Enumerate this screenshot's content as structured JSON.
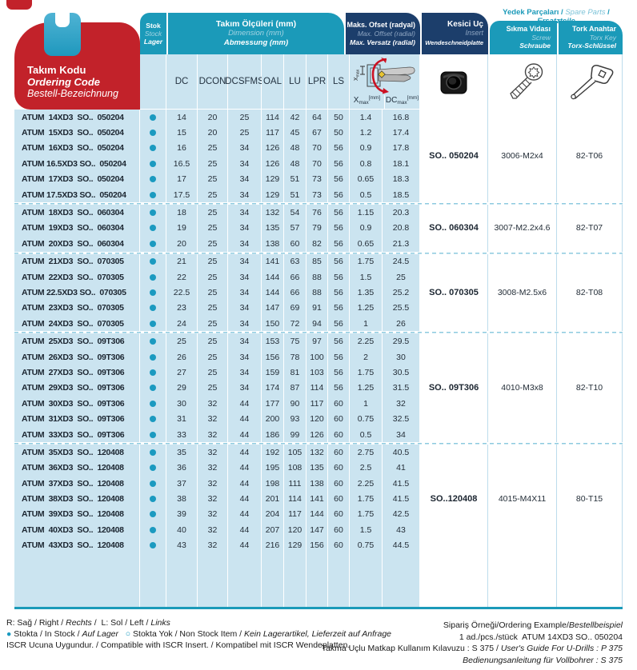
{
  "header": {
    "code": {
      "l1": "Takım Kodu",
      "l2": "Ordering Code",
      "l3": "Bestell-Bezeichnung"
    },
    "stock": {
      "l1": "Stok",
      "l2": "Stock",
      "l3": "Lager"
    },
    "dimensions": {
      "l1": "Takım Ölçüleri (mm)",
      "l2": "Dimension (mm)",
      "l3": "Abmessung (mm)"
    },
    "offset": {
      "l1": "Maks. Ofset (radyal)",
      "l2": "Max. Offset (radial)",
      "l3": "Max. Versatz (radial)"
    },
    "insert": {
      "l1": "Kesici Uç",
      "l2": "Insert",
      "l3": "Wendeschneidplatte"
    },
    "screw": {
      "l1": "Sıkma Vidası",
      "l2": "Screw",
      "l3": "Schraube"
    },
    "torx": {
      "l1": "Tork Anahtar",
      "l2": "Torx Key",
      "l3": "Torx-Schlüssel"
    },
    "spare_parts_title": [
      {
        "t": "Yedek Parçaları / ",
        "b": true
      },
      {
        "t": "Spare Parts",
        "i": true,
        "muted": true
      },
      {
        "t": " / ",
        "b": true
      },
      {
        "t": "Ersatzteile",
        "b": true,
        "i": true
      }
    ],
    "dim_columns": [
      "DC",
      "DCON",
      "DCSFMS",
      "OAL",
      "LU",
      "LPR",
      "LS"
    ],
    "offset_cols": [
      {
        "base": "X",
        "sub": "max",
        "unit": "[mm]"
      },
      {
        "base": "DC",
        "sub": "max",
        "unit": "[mm]"
      }
    ]
  },
  "groups": [
    {
      "insert": "SO.. 050204",
      "screw": "3006-M2x4",
      "torx": "82-T06",
      "rows": [
        {
          "code": "ATUM  14XD3  SO..  050204",
          "stock": "in",
          "vals": [
            "14",
            "20",
            "25",
            "114",
            "42",
            "64",
            "50",
            "1.4",
            "16.8"
          ]
        },
        {
          "code": "ATUM  15XD3  SO..  050204",
          "stock": "in",
          "vals": [
            "15",
            "20",
            "25",
            "117",
            "45",
            "67",
            "50",
            "1.2",
            "17.4"
          ]
        },
        {
          "code": "ATUM  16XD3  SO..  050204",
          "stock": "in",
          "vals": [
            "16",
            "25",
            "34",
            "126",
            "48",
            "70",
            "56",
            "0.9",
            "17.8"
          ]
        },
        {
          "code": "ATUM 16.5XD3 SO..  050204",
          "stock": "in",
          "vals": [
            "16.5",
            "25",
            "34",
            "126",
            "48",
            "70",
            "56",
            "0.8",
            "18.1"
          ]
        },
        {
          "code": "ATUM  17XD3  SO..  050204",
          "stock": "in",
          "vals": [
            "17",
            "25",
            "34",
            "129",
            "51",
            "73",
            "56",
            "0.65",
            "18.3"
          ]
        },
        {
          "code": "ATUM 17.5XD3 SO..  050204",
          "stock": "in",
          "vals": [
            "17.5",
            "25",
            "34",
            "129",
            "51",
            "73",
            "56",
            "0.5",
            "18.5"
          ]
        }
      ]
    },
    {
      "insert": "SO.. 060304",
      "screw": "3007-M2.2x4.6",
      "torx": "82-T07",
      "rows": [
        {
          "code": "ATUM  18XD3  SO..  060304",
          "stock": "in",
          "vals": [
            "18",
            "25",
            "34",
            "132",
            "54",
            "76",
            "56",
            "1.15",
            "20.3"
          ]
        },
        {
          "code": "ATUM  19XD3  SO..  060304",
          "stock": "in",
          "vals": [
            "19",
            "25",
            "34",
            "135",
            "57",
            "79",
            "56",
            "0.9",
            "20.8"
          ]
        },
        {
          "code": "ATUM  20XD3  SO..  060304",
          "stock": "in",
          "vals": [
            "20",
            "25",
            "34",
            "138",
            "60",
            "82",
            "56",
            "0.65",
            "21.3"
          ]
        }
      ]
    },
    {
      "insert": "SO.. 070305",
      "screw": "3008-M2.5x6",
      "torx": "82-T08",
      "rows": [
        {
          "code": "ATUM  21XD3  SO..  070305",
          "stock": "in",
          "vals": [
            "21",
            "25",
            "34",
            "141",
            "63",
            "85",
            "56",
            "1.75",
            "24.5"
          ]
        },
        {
          "code": "ATUM  22XD3  SO..  070305",
          "stock": "in",
          "vals": [
            "22",
            "25",
            "34",
            "144",
            "66",
            "88",
            "56",
            "1.5",
            "25"
          ]
        },
        {
          "code": "ATUM 22.5XD3 SO..  070305",
          "stock": "in",
          "vals": [
            "22.5",
            "25",
            "34",
            "144",
            "66",
            "88",
            "56",
            "1.35",
            "25.2"
          ]
        },
        {
          "code": "ATUM  23XD3  SO..  070305",
          "stock": "in",
          "vals": [
            "23",
            "25",
            "34",
            "147",
            "69",
            "91",
            "56",
            "1.25",
            "25.5"
          ]
        },
        {
          "code": "ATUM  24XD3  SO..  070305",
          "stock": "in",
          "vals": [
            "24",
            "25",
            "34",
            "150",
            "72",
            "94",
            "56",
            "1",
            "26"
          ]
        }
      ]
    },
    {
      "insert": "SO.. 09T306",
      "screw": "4010-M3x8",
      "torx": "82-T10",
      "rows": [
        {
          "code": "ATUM  25XD3  SO..  09T306",
          "stock": "in",
          "vals": [
            "25",
            "25",
            "34",
            "153",
            "75",
            "97",
            "56",
            "2.25",
            "29.5"
          ]
        },
        {
          "code": "ATUM  26XD3  SO..  09T306",
          "stock": "in",
          "vals": [
            "26",
            "25",
            "34",
            "156",
            "78",
            "100",
            "56",
            "2",
            "30"
          ]
        },
        {
          "code": "ATUM  27XD3  SO..  09T306",
          "stock": "in",
          "vals": [
            "27",
            "25",
            "34",
            "159",
            "81",
            "103",
            "56",
            "1.75",
            "30.5"
          ]
        },
        {
          "code": "ATUM  29XD3  SO..  09T306",
          "stock": "in",
          "vals": [
            "29",
            "25",
            "34",
            "174",
            "87",
            "114",
            "56",
            "1.25",
            "31.5"
          ]
        },
        {
          "code": "ATUM  30XD3  SO..  09T306",
          "stock": "in",
          "vals": [
            "30",
            "32",
            "44",
            "177",
            "90",
            "117",
            "60",
            "1",
            "32"
          ]
        },
        {
          "code": "ATUM  31XD3  SO..  09T306",
          "stock": "in",
          "vals": [
            "31",
            "32",
            "44",
            "200",
            "93",
            "120",
            "60",
            "0.75",
            "32.5"
          ]
        },
        {
          "code": "ATUM  33XD3  SO..  09T306",
          "stock": "in",
          "vals": [
            "33",
            "32",
            "44",
            "186",
            "99",
            "126",
            "60",
            "0.5",
            "34"
          ]
        }
      ]
    },
    {
      "insert": "SO..120408",
      "screw": "4015-M4X11",
      "torx": "80-T15",
      "rows": [
        {
          "code": "ATUM  35XD3  SO..  120408",
          "stock": "in",
          "vals": [
            "35",
            "32",
            "44",
            "192",
            "105",
            "132",
            "60",
            "2.75",
            "40.5"
          ]
        },
        {
          "code": "ATUM  36XD3  SO..  120408",
          "stock": "in",
          "vals": [
            "36",
            "32",
            "44",
            "195",
            "108",
            "135",
            "60",
            "2.5",
            "41"
          ]
        },
        {
          "code": "ATUM  37XD3  SO..  120408",
          "stock": "in",
          "vals": [
            "37",
            "32",
            "44",
            "198",
            "111",
            "138",
            "60",
            "2.25",
            "41.5"
          ]
        },
        {
          "code": "ATUM  38XD3  SO..  120408",
          "stock": "in",
          "vals": [
            "38",
            "32",
            "44",
            "201",
            "114",
            "141",
            "60",
            "1.75",
            "41.5"
          ]
        },
        {
          "code": "ATUM  39XD3  SO..  120408",
          "stock": "in",
          "vals": [
            "39",
            "32",
            "44",
            "204",
            "117",
            "144",
            "60",
            "1.75",
            "42.5"
          ]
        },
        {
          "code": "ATUM  40XD3  SO..  120408",
          "stock": "in",
          "vals": [
            "40",
            "32",
            "44",
            "207",
            "120",
            "147",
            "60",
            "1.5",
            "43"
          ]
        },
        {
          "code": "ATUM  43XD3  SO..  120408",
          "stock": "in",
          "vals": [
            "43",
            "32",
            "44",
            "216",
            "129",
            "156",
            "60",
            "0.75",
            "44.5"
          ]
        }
      ]
    }
  ],
  "footer": {
    "left": [
      [
        {
          "t": "R: Sağ / Right / "
        },
        {
          "t": "Rechts",
          "i": true
        },
        {
          "t": " /  L: Sol / Left / "
        },
        {
          "t": "Links",
          "i": true
        }
      ],
      [
        {
          "t": "●",
          "c": "dot"
        },
        {
          "t": " Stokta / In Stock / "
        },
        {
          "t": "Auf Lager",
          "i": true
        },
        {
          "t": "   "
        },
        {
          "t": "○",
          "c": "ring"
        },
        {
          "t": " Stokta Yok / Non Stock Item / "
        },
        {
          "t": "Kein Lagerartikel, Lieferzeit auf Anfrage",
          "i": true
        }
      ],
      [
        {
          "t": "ISCR Ucuna Uygundur. / Compatible with ISCR Insert. / Kompatibel mit ISCR Wendeplatten."
        }
      ]
    ],
    "right": [
      [
        {
          "t": "Sipariş Örneği/Ordering Example/"
        },
        {
          "t": "Bestellbeispiel",
          "i": true
        }
      ],
      [
        {
          "t": "1 ad./pcs./stück  ATUM 14XD3 SO.. 050204"
        }
      ],
      [
        {
          "t": "Takma Uçlu Matkap Kullanım Kılavuzu : S 375 / "
        },
        {
          "t": "User's Guide For U-Drills : P 375",
          "i": true
        }
      ],
      [
        {
          "t": "Bedienungsanleitung für Vollbohrer : S 375",
          "i": true
        }
      ]
    ]
  },
  "colors": {
    "teal": "#1B9AB9",
    "navy": "#1C3E6B",
    "red": "#C2222A",
    "row_bg": "#CBE4F0",
    "stock_dot": "#1B9AC0"
  },
  "icons": [
    "index-tab-icon",
    "stock-dot",
    "offset-diagram",
    "insert-image",
    "screw-image",
    "torx-key-image"
  ]
}
